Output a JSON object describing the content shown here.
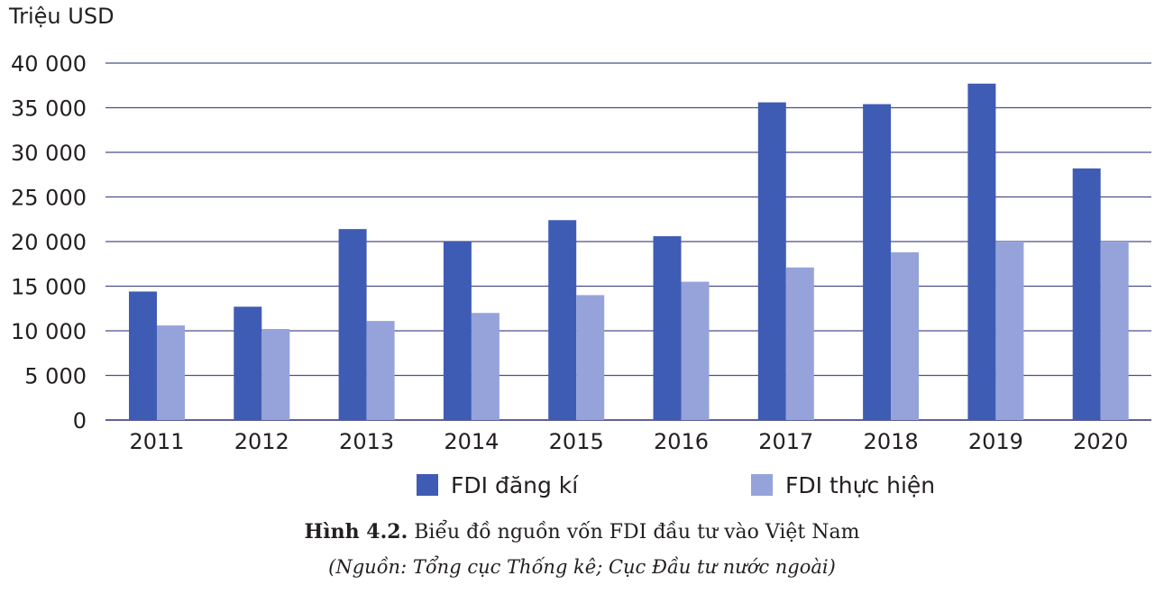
{
  "chart_data": {
    "type": "bar",
    "ylabel": "Triệu USD",
    "ylim": [
      0,
      40000
    ],
    "yticks": [
      0,
      5000,
      10000,
      15000,
      20000,
      25000,
      30000,
      35000,
      40000
    ],
    "ytick_labels": [
      "0",
      "5 000",
      "10 000",
      "15 000",
      "20 000",
      "25 000",
      "30 000",
      "35 000",
      "40 000"
    ],
    "categories": [
      "2011",
      "2012",
      "2013",
      "2014",
      "2015",
      "2016",
      "2017",
      "2018",
      "2019",
      "2020"
    ],
    "series": [
      {
        "name": "FDI đăng kí",
        "color": "#3f5cb4",
        "values": [
          14400,
          12700,
          21400,
          20000,
          22400,
          20600,
          35600,
          35400,
          37700,
          28200
        ]
      },
      {
        "name": "FDI thực hiện",
        "color": "#96a3db",
        "values": [
          10600,
          10200,
          11100,
          12000,
          14000,
          15500,
          17100,
          18800,
          20000,
          20000
        ]
      }
    ],
    "grid": true,
    "legend": "bottom"
  },
  "caption": {
    "figure_label": "Hình 4.2.",
    "title": "Biểu đồ nguồn vốn FDI đầu tư vào Việt Nam",
    "source": "(Nguồn: Tổng cục Thống kê; Cục Đầu tư nước ngoài)"
  }
}
